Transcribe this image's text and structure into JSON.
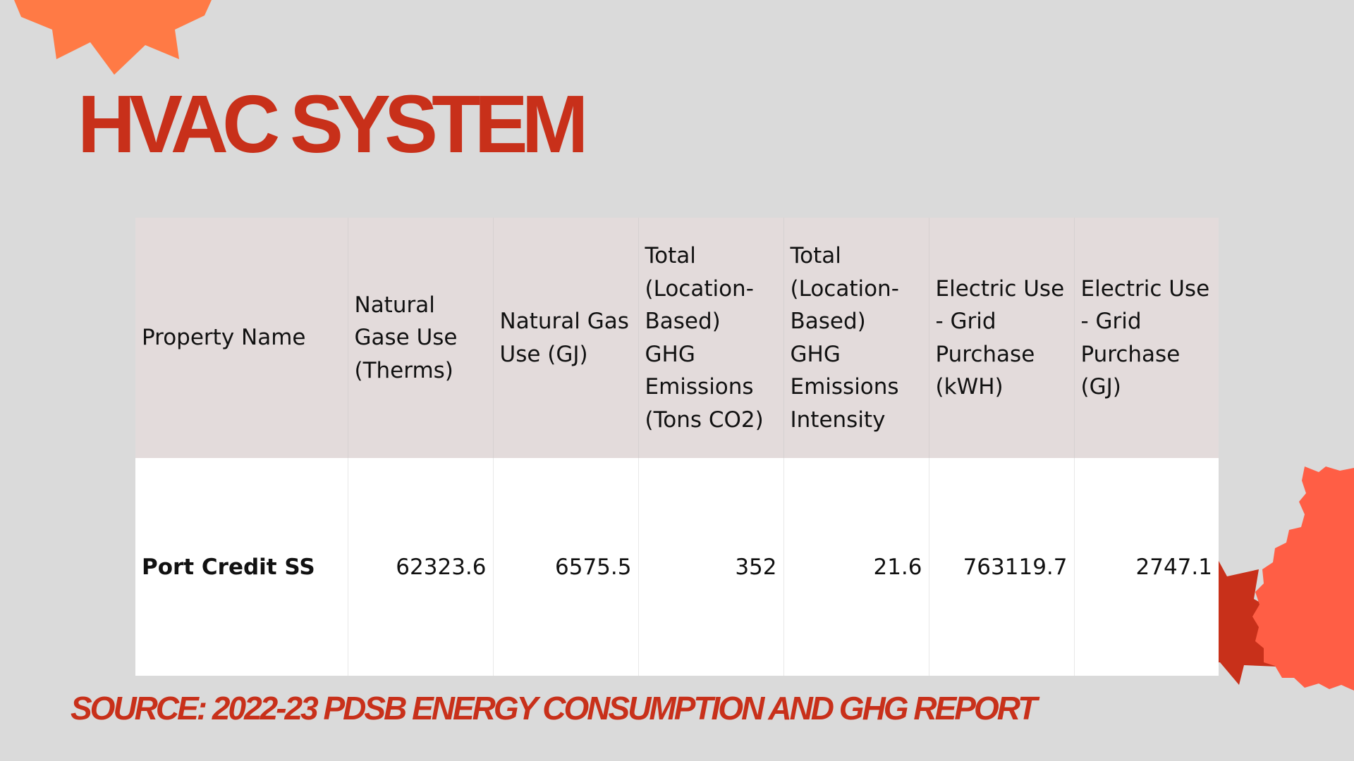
{
  "title": "HVAC SYSTEM",
  "table": {
    "headers": [
      "Property Name",
      "Natural Gase Use (Therms)",
      "Natural Gas Use (GJ)",
      "Total (Location-Based) GHG Emissions (Tons CO2)",
      "Total (Location-Based) GHG Emissions Intensity",
      "Electric Use - Grid Purchase (kWH)",
      "Electric Use - Grid Purchase (GJ)"
    ],
    "rows": [
      [
        "Port Credit SS",
        "62323.6",
        "6575.5",
        "352",
        "21.6",
        "763119.7",
        "2747.1"
      ]
    ]
  },
  "source": "SOURCE: 2022-23 PDSB ENERGY CONSUMPTION AND GHG REPORT",
  "colors": {
    "background": "#dadada",
    "accent_red": "#c8301a",
    "accent_orange": "#ff7a45",
    "accent_coral": "#ff5e45",
    "header_fill": "#e3dbdb",
    "row_fill": "#ffffff"
  }
}
